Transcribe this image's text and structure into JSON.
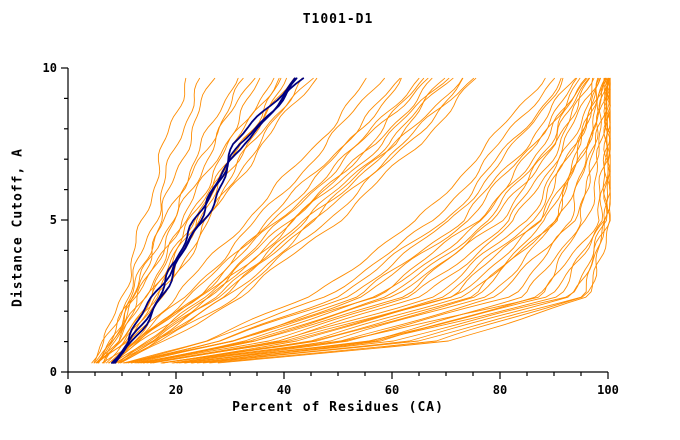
{
  "title": "T1001-D1",
  "chart_data": {
    "type": "line",
    "title": "T1001-D1",
    "xlabel": "Percent of Residues (CA)",
    "ylabel": "Distance Cutoff, A",
    "xlim": [
      0,
      100
    ],
    "ylim": [
      0,
      10
    ],
    "x_ticks": [
      0,
      20,
      40,
      60,
      80,
      100
    ],
    "y_ticks": [
      0,
      5,
      10
    ],
    "x_minor_step": 5,
    "y_minor_step": 1,
    "grid": false,
    "legend_position": "none",
    "colors": {
      "models": "#ff8c00",
      "highlight": "#000080",
      "axis": "#000000"
    },
    "jitter_amplitude": 1.1,
    "y_levels": [
      0.3,
      1,
      2.5,
      5,
      7.5,
      9.7
    ],
    "orange_curves": [
      [
        5,
        8,
        13,
        20,
        27,
        34
      ],
      [
        6,
        9,
        14,
        22,
        30,
        38
      ],
      [
        7,
        10,
        15,
        23,
        32,
        40
      ],
      [
        6,
        10,
        16,
        24,
        33,
        42
      ],
      [
        5,
        9,
        15,
        23,
        31,
        39
      ],
      [
        7,
        11,
        17,
        25,
        34,
        44
      ],
      [
        6,
        8,
        12,
        19,
        26,
        33
      ],
      [
        8,
        12,
        18,
        26,
        35,
        45
      ],
      [
        5,
        8,
        12,
        18,
        25,
        31
      ],
      [
        7,
        10,
        16,
        24,
        32,
        41
      ],
      [
        6,
        9,
        13,
        21,
        29,
        36
      ],
      [
        8,
        11,
        17,
        26,
        36,
        46
      ],
      [
        4,
        7,
        10,
        14,
        18,
        22
      ],
      [
        5,
        7,
        11,
        16,
        20,
        25
      ],
      [
        5,
        8,
        12,
        17,
        22,
        27
      ],
      [
        7,
        12,
        22,
        35,
        48,
        58
      ],
      [
        8,
        13,
        24,
        38,
        52,
        62
      ],
      [
        6,
        11,
        20,
        33,
        46,
        56
      ],
      [
        9,
        15,
        27,
        42,
        56,
        66
      ],
      [
        7,
        13,
        25,
        40,
        54,
        65
      ],
      [
        8,
        14,
        26,
        41,
        57,
        68
      ],
      [
        10,
        16,
        29,
        45,
        60,
        70
      ],
      [
        9,
        14,
        26,
        42,
        58,
        70
      ],
      [
        8,
        15,
        28,
        44,
        61,
        73
      ],
      [
        10,
        17,
        31,
        48,
        63,
        74
      ],
      [
        7,
        12,
        23,
        37,
        51,
        62
      ],
      [
        9,
        16,
        30,
        46,
        62,
        75
      ],
      [
        8,
        13,
        24,
        39,
        54,
        67
      ],
      [
        10,
        18,
        32,
        50,
        65,
        76
      ],
      [
        9,
        15,
        28,
        44,
        59,
        71
      ],
      [
        10,
        25,
        45,
        65,
        78,
        88
      ],
      [
        12,
        28,
        50,
        70,
        82,
        92
      ],
      [
        11,
        30,
        55,
        74,
        86,
        95
      ],
      [
        13,
        32,
        58,
        77,
        88,
        96
      ],
      [
        10,
        26,
        48,
        68,
        80,
        90
      ],
      [
        14,
        35,
        62,
        80,
        90,
        97
      ],
      [
        12,
        30,
        54,
        73,
        85,
        94
      ],
      [
        15,
        38,
        66,
        83,
        92,
        98
      ],
      [
        11,
        28,
        52,
        71,
        83,
        92
      ],
      [
        16,
        40,
        70,
        86,
        94,
        99
      ],
      [
        13,
        33,
        60,
        78,
        89,
        96
      ],
      [
        17,
        42,
        72,
        88,
        95,
        99
      ],
      [
        12,
        31,
        57,
        76,
        87,
        95
      ],
      [
        18,
        45,
        75,
        90,
        96,
        100
      ],
      [
        14,
        36,
        64,
        82,
        91,
        97
      ],
      [
        19,
        48,
        78,
        91,
        97,
        100
      ],
      [
        15,
        39,
        68,
        85,
        93,
        98
      ],
      [
        20,
        50,
        80,
        93,
        97,
        100
      ],
      [
        13,
        34,
        61,
        79,
        90,
        96
      ],
      [
        21,
        52,
        82,
        94,
        98,
        100
      ],
      [
        16,
        41,
        71,
        87,
        94,
        99
      ],
      [
        22,
        55,
        85,
        95,
        98,
        100
      ],
      [
        17,
        44,
        74,
        89,
        95,
        99
      ],
      [
        23,
        58,
        87,
        96,
        99,
        100
      ],
      [
        18,
        46,
        76,
        90,
        96,
        99
      ],
      [
        20,
        55,
        90,
        99,
        100,
        100
      ],
      [
        22,
        60,
        93,
        100,
        100,
        100
      ],
      [
        25,
        65,
        95,
        100,
        100,
        100
      ],
      [
        18,
        50,
        88,
        98,
        100,
        100
      ],
      [
        24,
        62,
        94,
        100,
        100,
        100
      ],
      [
        26,
        68,
        96,
        100,
        100,
        100
      ],
      [
        21,
        57,
        91,
        99,
        100,
        100
      ],
      [
        28,
        70,
        97,
        100,
        100,
        100
      ]
    ],
    "navy_curves": [
      [
        8,
        11,
        16,
        24,
        31,
        42
      ],
      [
        8,
        12,
        17,
        25,
        32,
        43
      ],
      [
        9,
        12,
        17,
        24,
        32,
        44
      ]
    ]
  }
}
